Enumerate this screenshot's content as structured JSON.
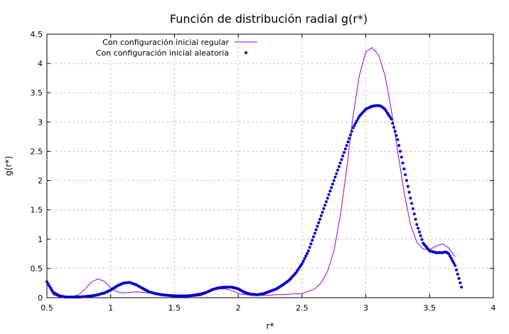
{
  "chart_data": {
    "type": "line",
    "title": "Función de distribución radial g(r*)",
    "xlabel": "r*",
    "ylabel": "g(r*)",
    "xlim": [
      0.5,
      4
    ],
    "ylim": [
      0,
      4.5
    ],
    "xticks": [
      "0.5",
      "1",
      "1.5",
      "2",
      "2.5",
      "3",
      "3.5",
      "4"
    ],
    "yticks": [
      "0",
      "0.5",
      "1",
      "1.5",
      "2",
      "2.5",
      "3",
      "3.5",
      "4",
      "4.5"
    ],
    "grid": true,
    "legend_position": "top-left",
    "series": [
      {
        "name": "Con configuración inicial regular",
        "style": "line",
        "color": "#9400d3",
        "x": [
          0.5,
          0.55,
          0.6,
          0.65,
          0.7,
          0.75,
          0.8,
          0.85,
          0.9,
          0.95,
          1.0,
          1.05,
          1.1,
          1.15,
          1.2,
          1.3,
          1.4,
          1.5,
          1.6,
          1.7,
          1.8,
          1.85,
          1.9,
          1.95,
          2.0,
          2.1,
          2.2,
          2.3,
          2.4,
          2.5,
          2.6,
          2.65,
          2.7,
          2.75,
          2.8,
          2.85,
          2.9,
          2.95,
          3.0,
          3.05,
          3.1,
          3.15,
          3.2,
          3.25,
          3.3,
          3.35,
          3.4,
          3.45,
          3.5,
          3.55,
          3.6,
          3.65,
          3.7
        ],
        "y": [
          0.25,
          0.05,
          0.01,
          0.01,
          0.02,
          0.05,
          0.15,
          0.27,
          0.32,
          0.28,
          0.17,
          0.1,
          0.08,
          0.09,
          0.1,
          0.08,
          0.05,
          0.03,
          0.04,
          0.08,
          0.13,
          0.15,
          0.15,
          0.12,
          0.07,
          0.04,
          0.04,
          0.05,
          0.06,
          0.07,
          0.15,
          0.25,
          0.45,
          0.8,
          1.4,
          2.2,
          3.1,
          3.8,
          4.2,
          4.27,
          4.15,
          3.8,
          3.2,
          2.5,
          1.8,
          1.25,
          0.95,
          0.83,
          0.82,
          0.88,
          0.92,
          0.85,
          0.7
        ]
      },
      {
        "name": "Con configuración inicial aleatoria",
        "style": "points",
        "color": "#0000cd",
        "x": [
          0.5,
          0.55,
          0.6,
          0.65,
          0.7,
          0.75,
          0.8,
          0.85,
          0.9,
          0.95,
          1.0,
          1.05,
          1.1,
          1.15,
          1.2,
          1.25,
          1.3,
          1.35,
          1.4,
          1.5,
          1.6,
          1.7,
          1.75,
          1.8,
          1.85,
          1.9,
          1.95,
          2.0,
          2.05,
          2.1,
          2.15,
          2.2,
          2.3,
          2.35,
          2.4,
          2.45,
          2.5,
          2.55,
          2.6,
          2.65,
          2.7,
          2.75,
          2.8,
          2.85,
          2.9,
          2.95,
          3.0,
          3.05,
          3.08,
          3.1,
          3.12,
          3.15,
          3.2,
          3.25,
          3.3,
          3.35,
          3.4,
          3.45,
          3.5,
          3.55,
          3.6,
          3.63,
          3.65,
          3.7,
          3.75
        ],
        "y": [
          0.27,
          0.09,
          0.03,
          0.01,
          0.01,
          0.01,
          0.02,
          0.03,
          0.05,
          0.08,
          0.13,
          0.2,
          0.25,
          0.26,
          0.22,
          0.16,
          0.1,
          0.07,
          0.05,
          0.03,
          0.03,
          0.05,
          0.09,
          0.14,
          0.17,
          0.18,
          0.18,
          0.15,
          0.09,
          0.06,
          0.05,
          0.07,
          0.15,
          0.22,
          0.3,
          0.42,
          0.58,
          0.8,
          1.1,
          1.4,
          1.7,
          2.0,
          2.3,
          2.6,
          2.9,
          3.1,
          3.22,
          3.27,
          3.28,
          3.28,
          3.27,
          3.22,
          3.05,
          2.7,
          2.2,
          1.7,
          1.25,
          0.93,
          0.8,
          0.77,
          0.77,
          0.78,
          0.75,
          0.55,
          0.18
        ]
      }
    ]
  }
}
